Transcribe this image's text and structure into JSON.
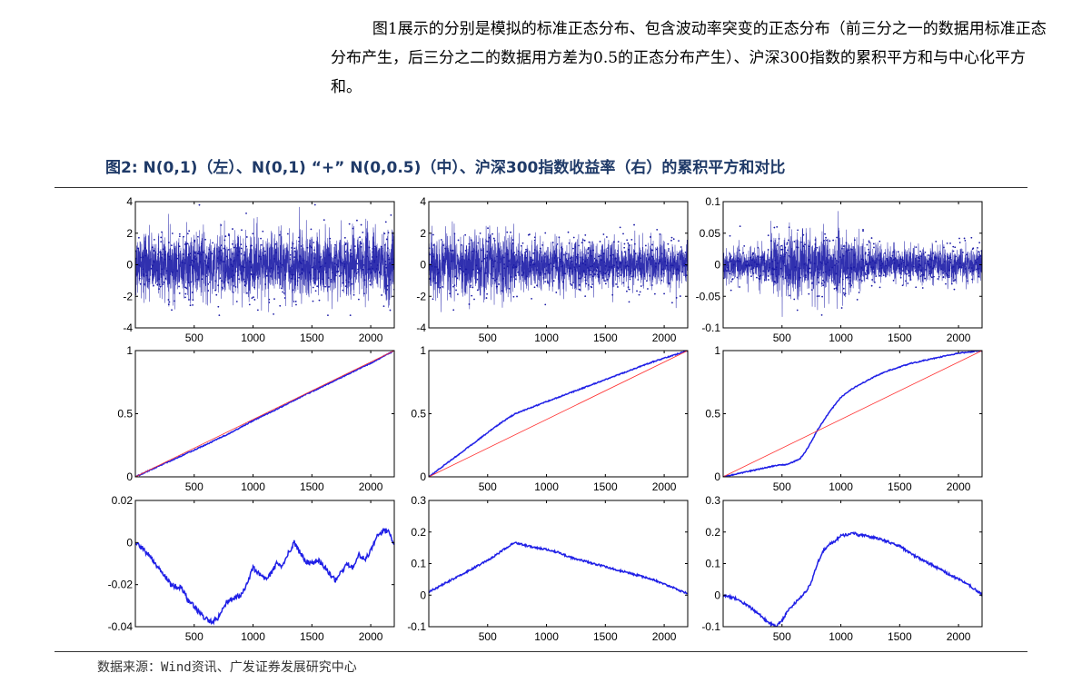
{
  "intro": {
    "paragraph": "图1展示的分别是模拟的标准正态分布、包含波动率突变的正态分布（前三分之一的数据用标准正态分布产生，后三分之二的数据用方差为0.5的正态分布产生）、沪深300指数的累积平方和与中心化平方和。"
  },
  "figure": {
    "title": "图2:  N(0,1)（左）、N(0,1) “+” N(0,0.5)（中）、沪深300指数收益率（右）的累积平方和对比",
    "source": "数据来源：Wind资讯、广发证券发展研究中心"
  },
  "colors": {
    "series_blue": "#1a1aa6",
    "cumsum_blue": "#1f1fe6",
    "reference_red": "#ff3030",
    "axis": "#000000"
  },
  "chart_data": [
    {
      "id": "top-left",
      "type": "line",
      "title": "",
      "xlabel": "",
      "ylabel": "",
      "xlim": [
        0,
        2200
      ],
      "ylim": [
        -4,
        4
      ],
      "xticks": [
        500,
        1000,
        1500,
        2000
      ],
      "yticks": [
        -4,
        -2,
        0,
        2,
        4
      ],
      "xtick_labels": [
        "500",
        "1000",
        "1500",
        "2000"
      ],
      "ytick_labels": [
        "-4",
        "-2",
        "0",
        "2",
        "4"
      ],
      "series": [
        {
          "kind": "noise",
          "marker": "dot",
          "n_points": 2200,
          "segments": [
            {
              "from": 0,
              "to": 2200,
              "std": 1.0
            }
          ],
          "envelope": [
            -3.2,
            3.8
          ]
        }
      ]
    },
    {
      "id": "top-middle",
      "type": "line",
      "title": "",
      "xlabel": "",
      "ylabel": "",
      "xlim": [
        0,
        2200
      ],
      "ylim": [
        -4,
        4
      ],
      "xticks": [
        500,
        1000,
        1500,
        2000
      ],
      "yticks": [
        -4,
        -2,
        0,
        2,
        4
      ],
      "xtick_labels": [
        "500",
        "1000",
        "1500",
        "2000"
      ],
      "ytick_labels": [
        "-4",
        "-2",
        "0",
        "2",
        "4"
      ],
      "series": [
        {
          "kind": "noise",
          "marker": "dot",
          "n_points": 2200,
          "segments": [
            {
              "from": 0,
              "to": 733,
              "std": 1.0
            },
            {
              "from": 733,
              "to": 2200,
              "std": 0.707
            }
          ],
          "envelope": [
            -3.0,
            3.6
          ]
        }
      ]
    },
    {
      "id": "top-right",
      "type": "line",
      "title": "",
      "xlabel": "",
      "ylabel": "",
      "xlim": [
        0,
        2200
      ],
      "ylim": [
        -0.1,
        0.1
      ],
      "xticks": [
        500,
        1000,
        1500,
        2000
      ],
      "yticks": [
        -0.1,
        -0.05,
        0,
        0.05,
        0.1
      ],
      "xtick_labels": [
        "500",
        "1000",
        "1500",
        "2000"
      ],
      "ytick_labels": [
        "-0.1",
        "-0.05",
        "0",
        "0.05",
        "0.1"
      ],
      "series": [
        {
          "kind": "noise",
          "marker": "dot",
          "n_points": 2200,
          "segments": [
            {
              "from": 0,
              "to": 400,
              "std": 0.013
            },
            {
              "from": 400,
              "to": 1200,
              "std": 0.024
            },
            {
              "from": 1200,
              "to": 2200,
              "std": 0.014
            }
          ],
          "envelope": [
            -0.093,
            0.1
          ]
        }
      ]
    },
    {
      "id": "middle-left",
      "type": "line",
      "title": "",
      "xlim": [
        0,
        2200
      ],
      "ylim": [
        0,
        1
      ],
      "xticks": [
        500,
        1000,
        1500,
        2000
      ],
      "yticks": [
        0,
        0.5,
        1
      ],
      "xtick_labels": [
        "500",
        "1000",
        "1500",
        "2000"
      ],
      "ytick_labels": [
        "0",
        "0.5",
        "1"
      ],
      "series": [
        {
          "name": "",
          "kind": "line",
          "color_key": "cumsum_blue",
          "x": [
            0,
            200,
            400,
            600,
            800,
            1000,
            1200,
            1400,
            1600,
            1800,
            2000,
            2200
          ],
          "y": [
            0,
            0.085,
            0.17,
            0.255,
            0.345,
            0.445,
            0.535,
            0.63,
            0.72,
            0.81,
            0.9,
            1.0
          ]
        },
        {
          "name": "",
          "kind": "line",
          "color_key": "reference_red",
          "x": [
            0,
            2200
          ],
          "y": [
            0,
            1
          ]
        }
      ]
    },
    {
      "id": "middle-middle",
      "type": "line",
      "title": "",
      "xlim": [
        0,
        2200
      ],
      "ylim": [
        0,
        1
      ],
      "xticks": [
        500,
        1000,
        1500,
        2000
      ],
      "yticks": [
        0,
        0.5,
        1
      ],
      "xtick_labels": [
        "500",
        "1000",
        "1500",
        "2000"
      ],
      "ytick_labels": [
        "0",
        "0.5",
        "1"
      ],
      "series": [
        {
          "name": "",
          "kind": "line",
          "color_key": "cumsum_blue",
          "x": [
            0,
            200,
            400,
            600,
            733,
            900,
            1100,
            1300,
            1500,
            1700,
            1900,
            2100,
            2200
          ],
          "y": [
            0,
            0.14,
            0.28,
            0.42,
            0.5,
            0.56,
            0.63,
            0.7,
            0.77,
            0.84,
            0.91,
            0.97,
            1.0
          ]
        },
        {
          "name": "",
          "kind": "line",
          "color_key": "reference_red",
          "x": [
            0,
            2200
          ],
          "y": [
            0,
            1
          ]
        }
      ]
    },
    {
      "id": "middle-right",
      "type": "line",
      "title": "",
      "xlim": [
        0,
        2200
      ],
      "ylim": [
        0,
        1
      ],
      "xticks": [
        500,
        1000,
        1500,
        2000
      ],
      "yticks": [
        0,
        0.5,
        1
      ],
      "xtick_labels": [
        "500",
        "1000",
        "1500",
        "2000"
      ],
      "ytick_labels": [
        "0",
        "0.5",
        "1"
      ],
      "series": [
        {
          "name": "",
          "kind": "line",
          "color_key": "cumsum_blue",
          "x": [
            0,
            150,
            300,
            450,
            550,
            650,
            700,
            750,
            800,
            850,
            900,
            950,
            1000,
            1100,
            1200,
            1300,
            1400,
            1500,
            1600,
            1800,
            2000,
            2200
          ],
          "y": [
            0,
            0.03,
            0.06,
            0.09,
            0.1,
            0.14,
            0.2,
            0.28,
            0.37,
            0.44,
            0.51,
            0.57,
            0.63,
            0.7,
            0.75,
            0.8,
            0.84,
            0.87,
            0.9,
            0.94,
            0.98,
            1.0
          ]
        },
        {
          "name": "",
          "kind": "line",
          "color_key": "reference_red",
          "x": [
            0,
            2200
          ],
          "y": [
            0,
            1
          ]
        }
      ]
    },
    {
      "id": "bottom-left",
      "type": "line",
      "title": "",
      "xlim": [
        0,
        2200
      ],
      "ylim": [
        -0.04,
        0.02
      ],
      "xticks": [
        500,
        1000,
        1500,
        2000
      ],
      "yticks": [
        -0.04,
        -0.02,
        0,
        0.02
      ],
      "xtick_labels": [
        "500",
        "1000",
        "1500",
        "2000"
      ],
      "ytick_labels": [
        "-0.04",
        "-0.02",
        "0",
        "0.02"
      ],
      "series": [
        {
          "name": "",
          "kind": "line",
          "color_key": "cumsum_blue",
          "jitter": 0.0012,
          "x": [
            0,
            100,
            200,
            300,
            400,
            450,
            500,
            550,
            600,
            650,
            700,
            750,
            800,
            850,
            900,
            950,
            1000,
            1050,
            1100,
            1150,
            1200,
            1250,
            1300,
            1350,
            1400,
            1450,
            1500,
            1550,
            1600,
            1650,
            1700,
            1750,
            1800,
            1850,
            1900,
            1950,
            2000,
            2050,
            2100,
            2150,
            2200
          ],
          "y": [
            0,
            -0.005,
            -0.012,
            -0.02,
            -0.022,
            -0.028,
            -0.03,
            -0.034,
            -0.036,
            -0.038,
            -0.036,
            -0.03,
            -0.027,
            -0.026,
            -0.025,
            -0.02,
            -0.012,
            -0.015,
            -0.017,
            -0.015,
            -0.01,
            -0.011,
            -0.005,
            0,
            -0.005,
            -0.009,
            -0.01,
            -0.008,
            -0.011,
            -0.015,
            -0.018,
            -0.014,
            -0.01,
            -0.012,
            -0.006,
            -0.008,
            -0.004,
            0.003,
            0.005,
            0.006,
            -0.001
          ]
        }
      ]
    },
    {
      "id": "bottom-middle",
      "type": "line",
      "title": "",
      "xlim": [
        0,
        2200
      ],
      "ylim": [
        -0.1,
        0.3
      ],
      "xticks": [
        500,
        1000,
        1500,
        2000
      ],
      "yticks": [
        -0.1,
        0,
        0.1,
        0.2,
        0.3
      ],
      "xtick_labels": [
        "500",
        "1000",
        "1500",
        "2000"
      ],
      "ytick_labels": [
        "-0.1",
        "0",
        "0.1",
        "0.2",
        "0.3"
      ],
      "series": [
        {
          "name": "",
          "kind": "line",
          "color_key": "cumsum_blue",
          "jitter": 0.003,
          "x": [
            0,
            100,
            200,
            300,
            400,
            500,
            600,
            700,
            733,
            800,
            900,
            1000,
            1100,
            1200,
            1300,
            1400,
            1500,
            1600,
            1700,
            1800,
            1900,
            2000,
            2100,
            2200
          ],
          "y": [
            0.01,
            0.03,
            0.05,
            0.07,
            0.09,
            0.11,
            0.135,
            0.16,
            0.165,
            0.16,
            0.15,
            0.145,
            0.135,
            0.12,
            0.11,
            0.1,
            0.09,
            0.08,
            0.07,
            0.06,
            0.05,
            0.035,
            0.02,
            0.005
          ]
        }
      ]
    },
    {
      "id": "bottom-right",
      "type": "line",
      "title": "",
      "xlim": [
        0,
        2200
      ],
      "ylim": [
        -0.1,
        0.3
      ],
      "xticks": [
        500,
        1000,
        1500,
        2000
      ],
      "yticks": [
        -0.1,
        0,
        0.1,
        0.2,
        0.3
      ],
      "xtick_labels": [
        "500",
        "1000",
        "1500",
        "2000"
      ],
      "ytick_labels": [
        "-0.1",
        "0",
        "0.1",
        "0.2",
        "0.3"
      ],
      "series": [
        {
          "name": "",
          "kind": "line",
          "color_key": "cumsum_blue",
          "jitter": 0.004,
          "x": [
            0,
            100,
            200,
            300,
            400,
            450,
            500,
            550,
            600,
            650,
            700,
            750,
            800,
            850,
            900,
            950,
            1000,
            1050,
            1100,
            1150,
            1200,
            1300,
            1400,
            1500,
            1600,
            1700,
            1800,
            1900,
            2000,
            2100,
            2200
          ],
          "y": [
            0,
            -0.01,
            -0.03,
            -0.06,
            -0.09,
            -0.1,
            -0.08,
            -0.05,
            -0.03,
            -0.01,
            0.01,
            0.04,
            0.1,
            0.14,
            0.16,
            0.17,
            0.19,
            0.19,
            0.2,
            0.19,
            0.19,
            0.18,
            0.17,
            0.155,
            0.13,
            0.11,
            0.09,
            0.07,
            0.05,
            0.03,
            0.0
          ]
        }
      ]
    }
  ]
}
